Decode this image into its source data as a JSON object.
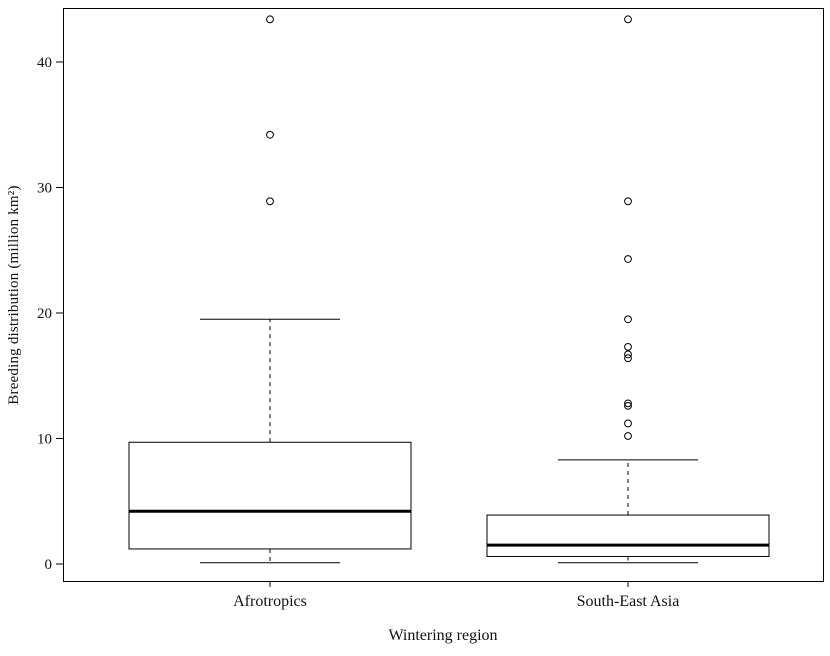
{
  "figure": {
    "background_color": "#ffffff"
  },
  "chart_data": {
    "type": "boxplot",
    "title": "",
    "xlabel": "Wintering region",
    "ylabel": "Breeding distribution (million km²)",
    "categories": [
      "Afrotropics",
      "South-East Asia"
    ],
    "y_ticks": [
      0,
      10,
      20,
      30,
      40
    ],
    "ylim": [
      -1.5,
      45
    ],
    "grid": false,
    "legend": false,
    "stroke_color": "#000000",
    "background_color": "#ffffff",
    "series": [
      {
        "name": "Afrotropics",
        "q1": 1.2,
        "median": 4.2,
        "q3": 9.7,
        "whisker_low": 0.1,
        "whisker_high": 19.5,
        "outliers": [
          28.9,
          34.2,
          43.4
        ]
      },
      {
        "name": "South-East Asia",
        "q1": 0.6,
        "median": 1.5,
        "q3": 3.9,
        "whisker_low": 0.1,
        "whisker_high": 8.3,
        "outliers": [
          10.2,
          11.2,
          12.6,
          12.8,
          16.4,
          16.7,
          17.3,
          19.5,
          24.3,
          28.9,
          43.4
        ]
      }
    ]
  }
}
